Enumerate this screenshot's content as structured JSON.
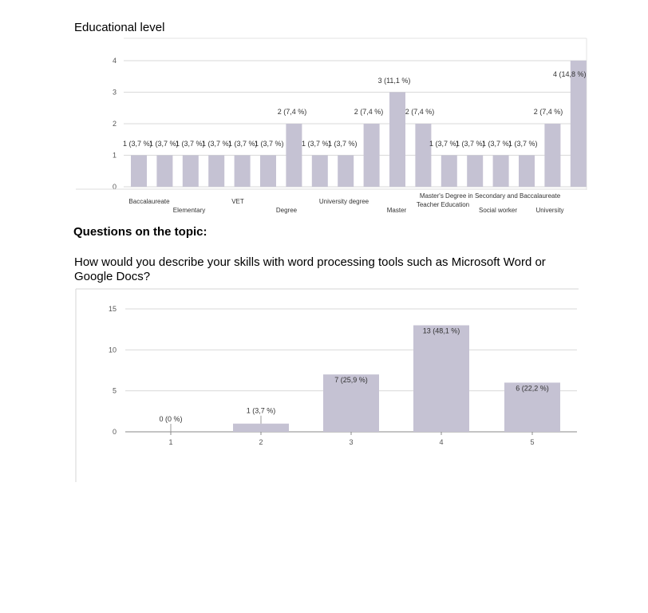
{
  "heading": "Educational level",
  "section_title": "Questions on the topic:",
  "question": "How would you describe your skills with word processing tools such as Microsoft Word or Google Docs?",
  "colors": {
    "bar": "#c5c2d3",
    "grid": "#d9d9d9",
    "axis": "#888888"
  },
  "chart_data": [
    {
      "type": "bar",
      "title": "",
      "xlabel": "",
      "ylabel": "",
      "ylim": [
        0,
        4
      ],
      "yticks": [
        "0",
        "1",
        "2",
        "3",
        "4"
      ],
      "grid": true,
      "values": [
        1,
        1,
        1,
        1,
        1,
        1,
        2,
        1,
        1,
        2,
        3,
        2,
        1,
        1,
        1,
        1,
        2,
        4
      ],
      "labels": [
        "1 (3,7 %)",
        "1 (3,7 %)",
        "1 (3,7 %)",
        "1 (3,7 %)",
        "1 (3,7 %)",
        "1 (3,7 %)",
        "2 (7,4 %)",
        "1 (3,7 %)",
        "1 (3,7 %)",
        "2 (7,4 %)",
        "3 (11,1 %)",
        "2 (7,4 %)",
        "1 (3,7 %)",
        "1 (3,7 %)",
        "1 (3,7 %)",
        "1 (3,7 %)",
        "2 (7,4 %)",
        "4 (14,8 %)"
      ],
      "categories_visible": [
        "Baccalaureate",
        "Elementary",
        "VET",
        "Degree",
        "University degree",
        "Master",
        "Master's Degree in Secondary and Baccalaureate Teacher Education",
        "Social worker",
        "University"
      ]
    },
    {
      "type": "bar",
      "title": "",
      "xlabel": "",
      "ylabel": "",
      "ylim": [
        0,
        15
      ],
      "yticks": [
        "0",
        "5",
        "10",
        "15"
      ],
      "grid": true,
      "categories": [
        "1",
        "2",
        "3",
        "4",
        "5"
      ],
      "values": [
        0,
        1,
        7,
        13,
        6
      ],
      "labels": [
        "0 (0 %)",
        "1 (3,7 %)",
        "7 (25,9 %)",
        "13 (48,1 %)",
        "6 (22,2 %)"
      ]
    }
  ]
}
